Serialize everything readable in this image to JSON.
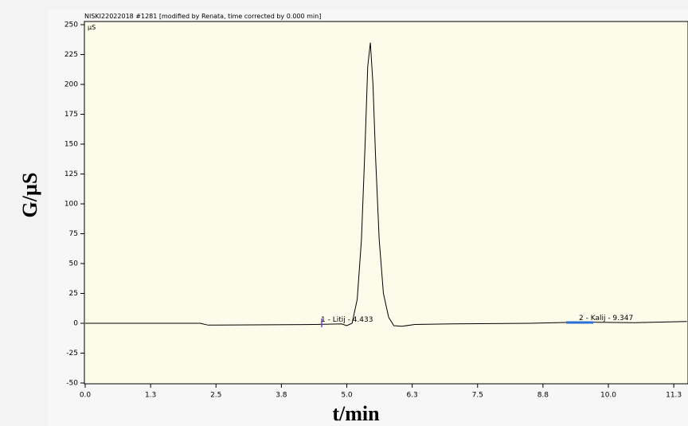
{
  "chart_data": {
    "type": "line",
    "title": "NISKI22022018 #1281 [modified by Renata, time corrected by 0.000 min]",
    "y_unit": "µS",
    "x_label": "t/min",
    "y_label": "G/µS",
    "x": [
      0,
      2.2,
      2.35,
      2.5,
      4.4,
      4.9,
      5.0,
      5.1,
      5.2,
      5.28,
      5.35,
      5.4,
      5.45,
      5.5,
      5.55,
      5.62,
      5.7,
      5.8,
      5.9,
      6.05,
      6.3,
      7.0,
      8.5,
      9.0,
      9.5,
      10.5,
      11.0,
      11.5
    ],
    "series": [
      {
        "name": "signal",
        "color": "#000000",
        "values": [
          0,
          0,
          -1.5,
          -1.5,
          -1,
          -0.5,
          -2,
          0,
          20,
          70,
          150,
          215,
          235,
          200,
          140,
          70,
          25,
          5,
          -2,
          -2.5,
          -1,
          -0.5,
          0,
          0.5,
          1,
          0.5,
          1,
          1.5
        ]
      }
    ],
    "annotations": [
      "1 - Litij - 4.433",
      "2 - Kalij - 9.347"
    ],
    "xlim": [
      0,
      11.5
    ],
    "ylim": [
      -50,
      250
    ],
    "xticks": [
      {
        "value": 0,
        "label": "0.0"
      },
      {
        "value": 1.25,
        "label": "1.3"
      },
      2.5,
      {
        "value": 3.75,
        "label": "3.8"
      },
      {
        "value": 5,
        "label": "5.0"
      },
      {
        "value": 6.25,
        "label": "6.3"
      },
      7.5,
      {
        "value": 8.75,
        "label": "8.8"
      },
      {
        "value": 10,
        "label": "10.0"
      },
      {
        "value": 11.25,
        "label": "11.3"
      }
    ],
    "yticks": [
      -50,
      -25,
      0,
      25,
      50,
      75,
      100,
      125,
      150,
      175,
      200,
      225,
      250
    ],
    "grid": false
  }
}
